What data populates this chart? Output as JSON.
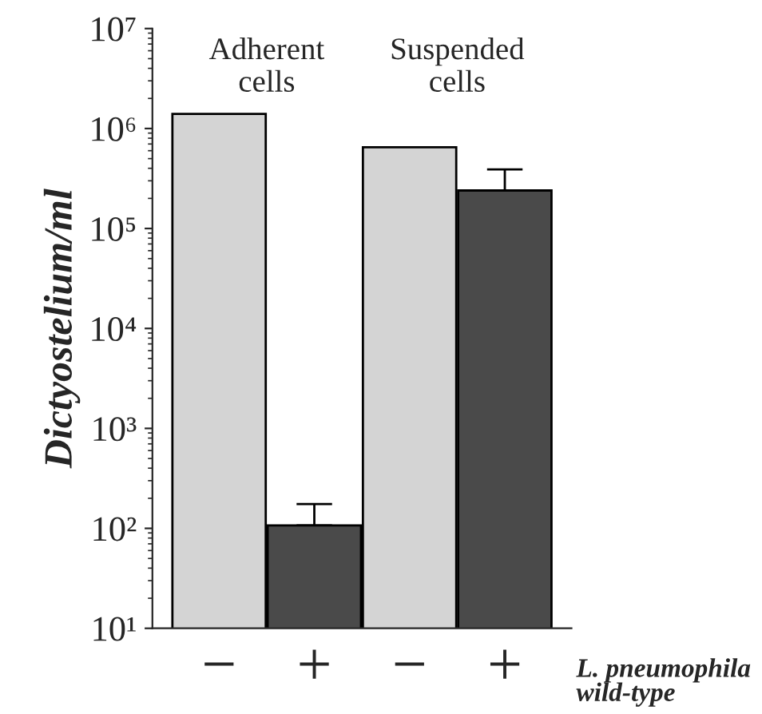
{
  "chart_data": {
    "type": "bar",
    "ylabel": "Dictyostelium/ml",
    "categories": [
      "−",
      "+",
      "−",
      "+"
    ],
    "values": [
      1400000,
      107,
      650000,
      240000
    ],
    "colors": [
      "#d4d4d4",
      "#4a4a4a",
      "#d4d4d4",
      "#4a4a4a"
    ],
    "errors": [
      null,
      [
        107,
        175
      ],
      null,
      [
        240000,
        390000
      ]
    ],
    "log": true,
    "ylim": [
      10,
      10000000
    ],
    "yticks": [
      {
        "value": 10,
        "label": "10¹"
      },
      {
        "value": 100,
        "label": "10²"
      },
      {
        "value": 1000,
        "label": "10³"
      },
      {
        "value": 10000,
        "label": "10⁴"
      },
      {
        "value": 100000,
        "label": "10⁵"
      },
      {
        "value": 1000000,
        "label": "10⁶"
      },
      {
        "value": 10000000,
        "label": "10⁷"
      }
    ],
    "grid": false,
    "legend": false,
    "annotations": [
      "Adherent\ncells",
      "Suspended\ncells",
      "L. pneumophila\nwild-type"
    ]
  }
}
